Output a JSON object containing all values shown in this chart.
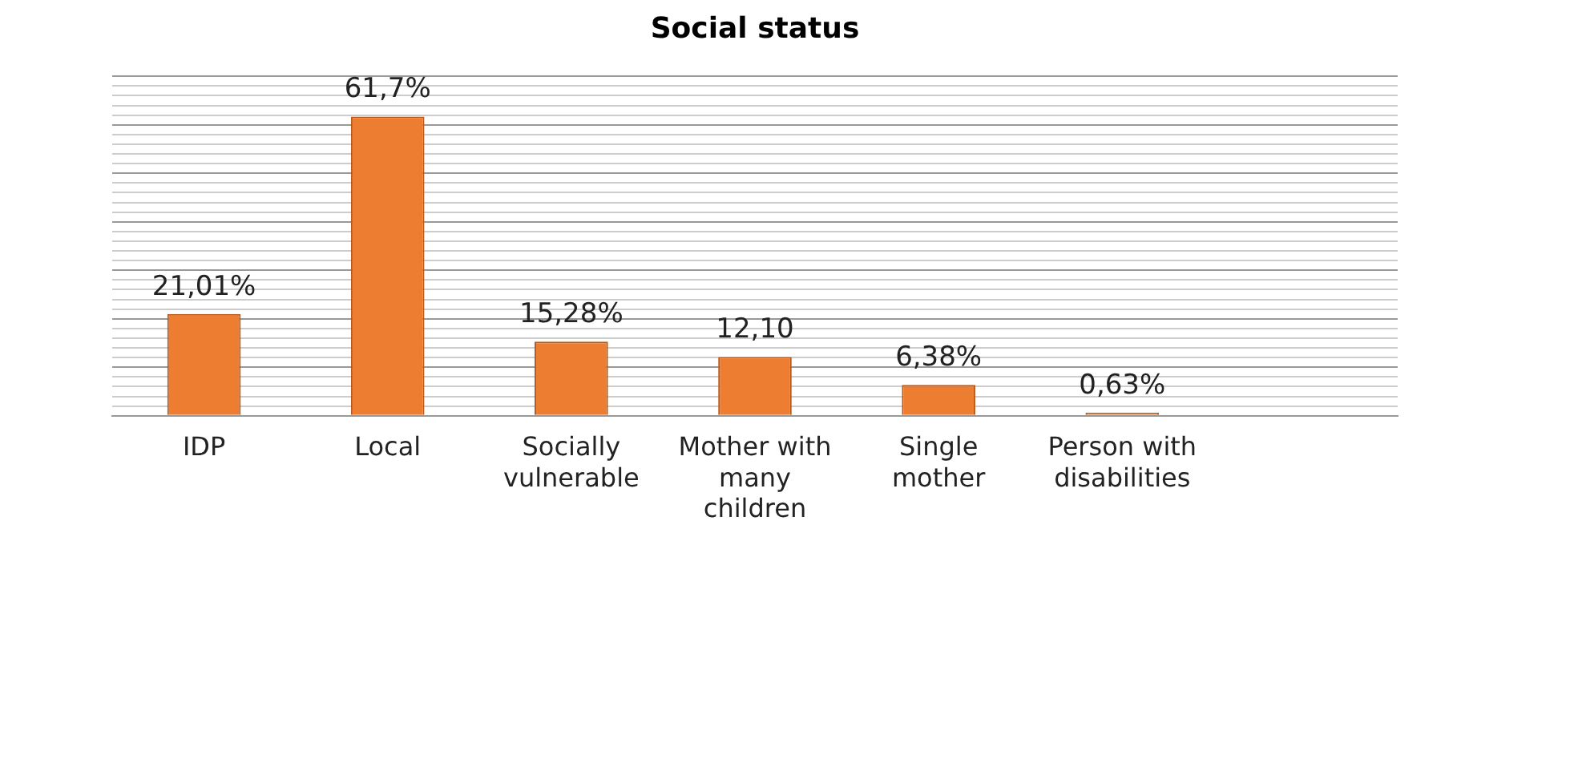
{
  "chart_data": {
    "type": "bar",
    "title": "Social status",
    "categories": [
      "IDP",
      "Local",
      "Socially vulnerable",
      "Mother with many children",
      "Single mother",
      "Person with disabilities",
      null
    ],
    "values": [
      21.01,
      61.7,
      15.28,
      12.1,
      6.38,
      0.63,
      null
    ],
    "value_labels": [
      "21,01%",
      "61,7%",
      "15,28%",
      "12,10",
      "6,38%",
      "0,63%",
      null
    ],
    "color": "#ed7d31",
    "ylim": [
      0,
      70
    ],
    "yticks": [
      {
        "value": 0,
        "label": null
      },
      {
        "value": 2,
        "label": null
      },
      {
        "value": 4,
        "label": null
      },
      {
        "value": 6,
        "label": null
      },
      {
        "value": 8,
        "label": null
      },
      {
        "value": 10,
        "label": null
      },
      {
        "value": 12,
        "label": null
      },
      {
        "value": 14,
        "label": null
      },
      {
        "value": 16,
        "label": null
      },
      {
        "value": 18,
        "label": null
      },
      {
        "value": 20,
        "label": null
      },
      {
        "value": 22,
        "label": null
      },
      {
        "value": 24,
        "label": null
      },
      {
        "value": 26,
        "label": null
      },
      {
        "value": 28,
        "label": null
      },
      {
        "value": 30,
        "label": null
      },
      {
        "value": 32,
        "label": null
      },
      {
        "value": 34,
        "label": null
      },
      {
        "value": 36,
        "label": null
      },
      {
        "value": 38,
        "label": null
      },
      {
        "value": 40,
        "label": null
      },
      {
        "value": 42,
        "label": null
      },
      {
        "value": 44,
        "label": null
      },
      {
        "value": 46,
        "label": null
      },
      {
        "value": 48,
        "label": null
      },
      {
        "value": 50,
        "label": null
      },
      {
        "value": 52,
        "label": null
      },
      {
        "value": 54,
        "label": null
      },
      {
        "value": 56,
        "label": null
      },
      {
        "value": 58,
        "label": null
      },
      {
        "value": 60,
        "label": null
      },
      {
        "value": 62,
        "label": null
      },
      {
        "value": 64,
        "label": null
      },
      {
        "value": 66,
        "label": null
      },
      {
        "value": 68,
        "label": null
      },
      {
        "value": 70,
        "label": null
      }
    ],
    "grid": "y",
    "tick_labels": "x",
    "legend": false
  }
}
